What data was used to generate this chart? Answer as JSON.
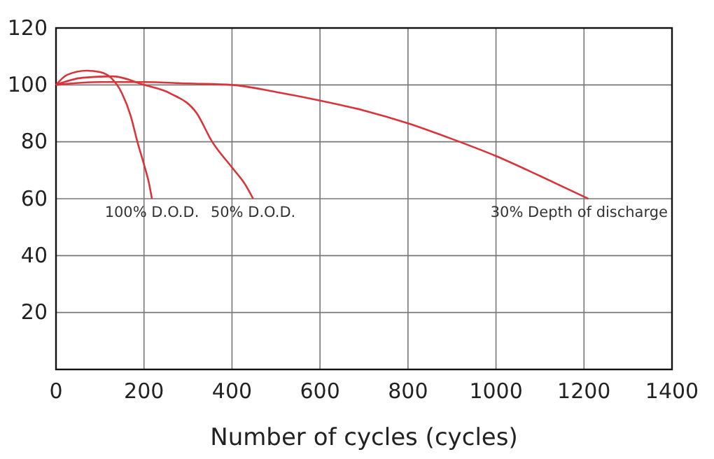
{
  "chart_data": {
    "type": "line",
    "xlabel": "Number of cycles (cycles)",
    "xlim": [
      0,
      1400
    ],
    "ylim": [
      0,
      120
    ],
    "xticks": [
      0,
      200,
      400,
      600,
      800,
      1000,
      1200,
      1400
    ],
    "yticks": [
      {
        "value": 0,
        "label": null
      },
      20,
      40,
      60,
      80,
      100,
      120
    ],
    "grid": true,
    "marker": "none",
    "line_style": "solid",
    "series": [
      {
        "name": "100% D.O.D.",
        "color": "#d9343a",
        "x": [
          0,
          25,
          70,
          100,
          125,
          150,
          170,
          185,
          200,
          212,
          218
        ],
        "values": [
          100,
          103.5,
          105,
          104.5,
          102.5,
          97,
          89,
          80,
          72,
          65,
          60
        ]
      },
      {
        "name": "50% D.O.D.",
        "color": "#d9343a",
        "x": [
          0,
          60,
          130,
          200,
          260,
          320,
          355,
          400,
          430,
          448
        ],
        "values": [
          100,
          102.5,
          103,
          100,
          97,
          90,
          80,
          71,
          65,
          60
        ]
      },
      {
        "name": "30% Depth of discharge",
        "color": "#d9343a",
        "x": [
          0,
          100,
          200,
          300,
          400,
          500,
          600,
          700,
          800,
          900,
          1000,
          1100,
          1210
        ],
        "values": [
          100,
          101,
          101,
          100.5,
          100,
          97.5,
          94.5,
          91,
          86.5,
          81,
          75,
          68,
          60
        ]
      }
    ]
  }
}
